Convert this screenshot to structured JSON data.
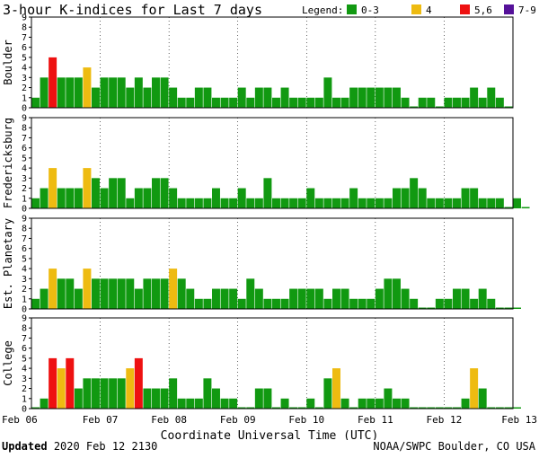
{
  "title": "3-hour K-indices for Last 7 days",
  "legend": {
    "label": "Legend:",
    "items": [
      {
        "label": "0-3",
        "color": "#119911"
      },
      {
        "label": "4",
        "color": "#eebb11"
      },
      {
        "label": "5,6",
        "color": "#ee1111"
      },
      {
        "label": "7-9",
        "color": "#551199"
      }
    ]
  },
  "footer": {
    "updated_label": "Updated",
    "updated_value": "2020 Feb 12 2130",
    "credit": "NOAA/SWPC Boulder, CO USA"
  },
  "chart_data": {
    "type": "bar",
    "xlabel": "Coordinate Universal Time (UTC)",
    "x_ticks": [
      "Feb 06",
      "Feb 07",
      "Feb 08",
      "Feb 09",
      "Feb 10",
      "Feb 11",
      "Feb 12",
      "Feb 13"
    ],
    "y_ticks": [
      0,
      1,
      2,
      3,
      4,
      5,
      6,
      7,
      8,
      9
    ],
    "ylim": [
      0,
      9
    ],
    "bar_interval_hours": 3,
    "panels": [
      {
        "name": "Boulder",
        "values": [
          1,
          3,
          5,
          3,
          3,
          3,
          4,
          2,
          3,
          3,
          3,
          2,
          3,
          2,
          3,
          3,
          2,
          1,
          1,
          2,
          2,
          1,
          1,
          1,
          2,
          1,
          2,
          2,
          1,
          2,
          1,
          1,
          1,
          1,
          3,
          1,
          1,
          2,
          2,
          2,
          2,
          2,
          2,
          1,
          0,
          1,
          1,
          0,
          1,
          1,
          1,
          2,
          1,
          2,
          1,
          0
        ]
      },
      {
        "name": "Fredericksburg",
        "values": [
          1,
          2,
          4,
          2,
          2,
          2,
          4,
          3,
          2,
          3,
          3,
          1,
          2,
          2,
          3,
          3,
          2,
          1,
          1,
          1,
          1,
          2,
          1,
          1,
          2,
          1,
          1,
          3,
          1,
          1,
          1,
          1,
          2,
          1,
          1,
          1,
          1,
          2,
          1,
          1,
          1,
          1,
          2,
          2,
          3,
          2,
          1,
          1,
          1,
          1,
          2,
          2,
          1,
          1,
          1,
          0,
          1,
          0
        ]
      },
      {
        "name": "Est. Planetary",
        "values": [
          1,
          2,
          4,
          3,
          3,
          2,
          4,
          3,
          3,
          3,
          3,
          3,
          2,
          3,
          3,
          3,
          4,
          3,
          2,
          1,
          1,
          2,
          2,
          2,
          1,
          3,
          2,
          1,
          1,
          1,
          2,
          2,
          2,
          2,
          1,
          2,
          2,
          1,
          1,
          1,
          2,
          3,
          3,
          2,
          1,
          0,
          0,
          1,
          1,
          2,
          2,
          1,
          2,
          1,
          0,
          0,
          0
        ]
      },
      {
        "name": "College",
        "values": [
          0,
          1,
          5,
          4,
          5,
          2,
          3,
          3,
          3,
          3,
          3,
          4,
          5,
          2,
          2,
          2,
          3,
          1,
          1,
          1,
          3,
          2,
          1,
          1,
          0,
          0,
          2,
          2,
          0,
          1,
          0,
          0,
          1,
          0,
          3,
          4,
          1,
          0,
          1,
          1,
          1,
          2,
          1,
          1,
          0,
          0,
          0,
          0,
          0,
          0,
          1,
          4,
          2,
          0,
          0,
          0,
          0
        ]
      }
    ]
  }
}
